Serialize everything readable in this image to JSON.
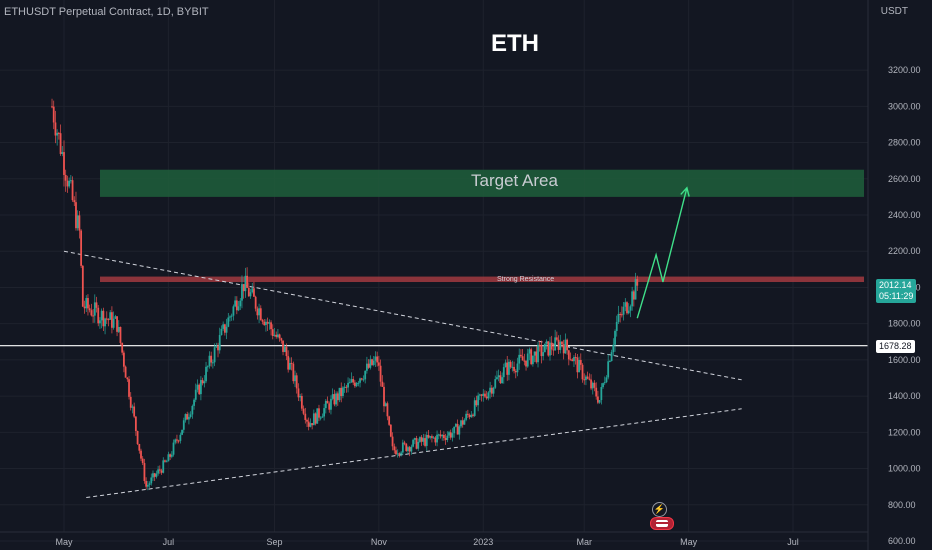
{
  "header": {
    "symbol_line": "ETHUSDT Perpetual Contract, 1D, BYBIT",
    "currency": "USDT"
  },
  "annotations": {
    "title": "ETH",
    "target_area": "Target Area",
    "strong_resistance": "Strong Resistance"
  },
  "price_tags": {
    "last_price": "2012.14",
    "countdown": "05:11:29",
    "level": "1678.28"
  },
  "icons": [
    "lightning-icon",
    "us-flag-icon"
  ],
  "colors": {
    "background": "#131722",
    "up_candle": "#26a69a",
    "down_candle": "#ef5350",
    "target_zone": "#1e5b3a",
    "resistance": "#a23a3f",
    "projection": "#3fe08a",
    "trendline": "#d1d4dc"
  },
  "chart_data": {
    "type": "candlestick",
    "title": "ETH",
    "xaxis": {
      "ticks": [
        "May",
        "Jul",
        "Sep",
        "Nov",
        "2023",
        "Mar",
        "May",
        "Jul"
      ]
    },
    "yaxis": {
      "ylim": [
        560,
        3450
      ],
      "ticks": [
        "600.00",
        "800.00",
        "1000.00",
        "1200.00",
        "1400.00",
        "1600.00",
        "1800.00",
        "2000.00",
        "2200.00",
        "2400.00",
        "2600.00",
        "2800.00",
        "3000.00",
        "3200.00"
      ]
    },
    "price_path_approx": [
      {
        "date": "2022-04-24",
        "price": 3000
      },
      {
        "date": "2022-05-10",
        "price": 2300
      },
      {
        "date": "2022-05-12",
        "price": 1900
      },
      {
        "date": "2022-06-01",
        "price": 1800
      },
      {
        "date": "2022-06-18",
        "price": 900
      },
      {
        "date": "2022-07-01",
        "price": 1050
      },
      {
        "date": "2022-08-14",
        "price": 2020
      },
      {
        "date": "2022-09-07",
        "price": 1650
      },
      {
        "date": "2022-09-21",
        "price": 1250
      },
      {
        "date": "2022-10-31",
        "price": 1600
      },
      {
        "date": "2022-11-09",
        "price": 1100
      },
      {
        "date": "2022-12-15",
        "price": 1200
      },
      {
        "date": "2023-01-14",
        "price": 1550
      },
      {
        "date": "2023-02-16",
        "price": 1700
      },
      {
        "date": "2023-03-10",
        "price": 1380
      },
      {
        "date": "2023-03-20",
        "price": 1800
      },
      {
        "date": "2023-04-01",
        "price": 2012.14
      }
    ],
    "zones": [
      {
        "label": "Target Area",
        "from": 2500,
        "to": 2650
      },
      {
        "label": "Strong Resistance",
        "from": 2030,
        "to": 2060
      }
    ],
    "horizontal_lines": [
      {
        "value": 1678.28
      }
    ],
    "trendlines": [
      {
        "style": "dashed",
        "from": {
          "date": "2022-05-01",
          "price": 2200
        },
        "to": {
          "date": "2023-06-01",
          "price": 1490
        }
      },
      {
        "style": "dashed",
        "from": {
          "date": "2022-05-14",
          "price": 840
        },
        "to": {
          "date": "2023-06-01",
          "price": 1330
        }
      }
    ],
    "projection": [
      {
        "date": "2023-04-01",
        "price": 1830
      },
      {
        "date": "2023-04-12",
        "price": 2180
      },
      {
        "date": "2023-04-16",
        "price": 2030
      },
      {
        "date": "2023-04-30",
        "price": 2550
      }
    ],
    "last_price": 2012.14
  }
}
